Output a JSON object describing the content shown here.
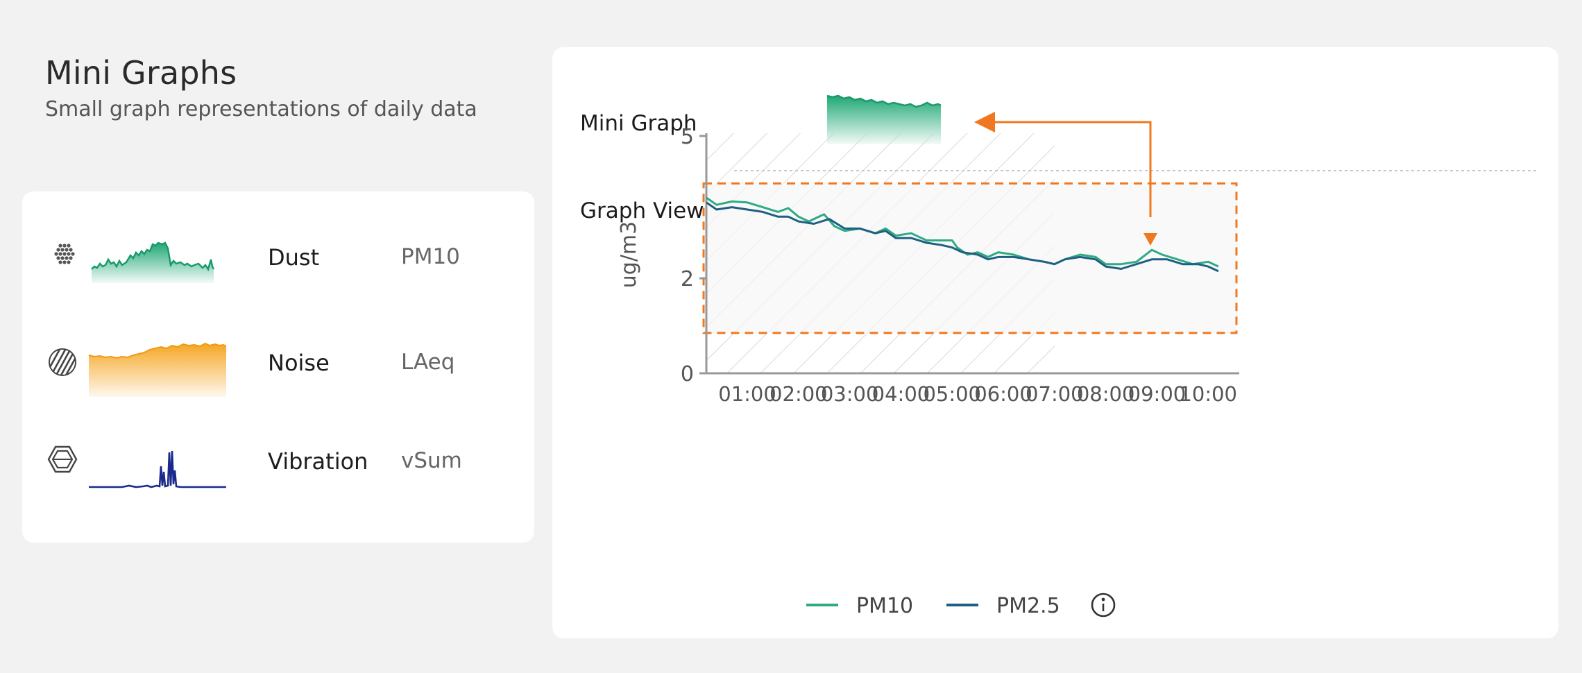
{
  "header": {
    "title": "Mini Graphs",
    "subtitle": "Small graph representations of daily data"
  },
  "sensors": [
    {
      "name": "Dust",
      "metric": "PM10",
      "icon": "dots-hexagon-icon",
      "color": "#1fa875"
    },
    {
      "name": "Noise",
      "metric": "LAeq",
      "icon": "striped-circle-icon",
      "color": "#f5a623"
    },
    {
      "name": "Vibration",
      "metric": "vSum",
      "icon": "hexagon-outline-icon",
      "color": "#1a2a8c"
    }
  ],
  "main": {
    "mini_graph_label": "Mini Graph",
    "graph_view_label": "Graph View",
    "info_icon": "info-circle-icon"
  },
  "colors": {
    "pm10": "#2eaa84",
    "pm25": "#1f5f82",
    "highlight": "#f07820"
  },
  "chart_data": {
    "type": "line",
    "ylabel": "ug/m3",
    "yticks": [
      0,
      2,
      5
    ],
    "ylim": [
      0,
      5
    ],
    "xlim": [
      0.2,
      10.2
    ],
    "xticks": [
      "01:00",
      "02:00",
      "03:00",
      "04:00",
      "05:00",
      "06:00",
      "07:00",
      "08:00",
      "09:00",
      "10:00"
    ],
    "hatched_until": "07:00",
    "highlight_range": [
      0.85,
      4.0
    ],
    "legend_position": "bottom-left",
    "series": [
      {
        "name": "PM10",
        "x": [
          0.2,
          0.4,
          0.7,
          1.0,
          1.3,
          1.6,
          1.8,
          2.0,
          2.2,
          2.5,
          2.7,
          2.9,
          3.2,
          3.5,
          3.7,
          3.9,
          4.2,
          4.5,
          4.8,
          5.0,
          5.1,
          5.3,
          5.5,
          5.7,
          5.9,
          6.2,
          6.5,
          6.8,
          7.0,
          7.2,
          7.5,
          7.8,
          8.0,
          8.3,
          8.6,
          8.9,
          9.1,
          9.4,
          9.7,
          10.0,
          10.2
        ],
        "y": [
          3.7,
          3.55,
          3.62,
          3.6,
          3.5,
          3.4,
          3.48,
          3.3,
          3.2,
          3.35,
          3.1,
          3.0,
          3.05,
          2.95,
          3.05,
          2.9,
          2.95,
          2.8,
          2.8,
          2.8,
          2.65,
          2.5,
          2.55,
          2.45,
          2.55,
          2.5,
          2.4,
          2.35,
          2.3,
          2.4,
          2.5,
          2.45,
          2.3,
          2.3,
          2.35,
          2.6,
          2.5,
          2.4,
          2.3,
          2.35,
          2.25
        ]
      },
      {
        "name": "PM2.5",
        "x": [
          0.2,
          0.4,
          0.7,
          1.0,
          1.3,
          1.6,
          1.8,
          2.0,
          2.3,
          2.6,
          2.9,
          3.2,
          3.5,
          3.7,
          3.9,
          4.2,
          4.5,
          4.8,
          5.0,
          5.2,
          5.5,
          5.7,
          5.9,
          6.2,
          6.5,
          6.8,
          7.0,
          7.2,
          7.5,
          7.8,
          8.0,
          8.3,
          8.6,
          8.9,
          9.2,
          9.5,
          9.8,
          10.0,
          10.2
        ],
        "y": [
          3.6,
          3.45,
          3.5,
          3.45,
          3.4,
          3.3,
          3.3,
          3.2,
          3.15,
          3.25,
          3.05,
          3.05,
          2.95,
          3.0,
          2.85,
          2.85,
          2.75,
          2.7,
          2.65,
          2.55,
          2.5,
          2.4,
          2.45,
          2.45,
          2.4,
          2.35,
          2.3,
          2.4,
          2.45,
          2.4,
          2.25,
          2.2,
          2.3,
          2.4,
          2.4,
          2.3,
          2.3,
          2.25,
          2.15
        ]
      }
    ]
  }
}
